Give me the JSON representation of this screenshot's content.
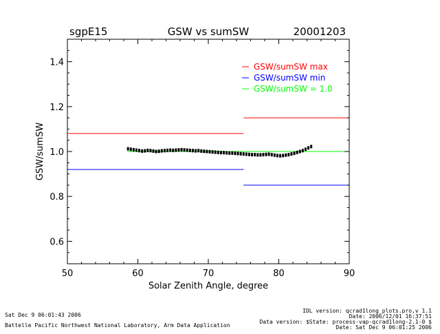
{
  "header": {
    "site": "sgpE15",
    "title": "GSW vs sumSW",
    "date": "20001203"
  },
  "chart_data": {
    "type": "scatter",
    "title": "GSW vs sumSW",
    "xlabel": "Solar Zenith Angle, degree",
    "ylabel": "GSW/sumSW",
    "xlim": [
      50,
      90
    ],
    "ylim": [
      0.5,
      1.5
    ],
    "xticks": [
      50,
      60,
      70,
      80,
      90
    ],
    "yticks": [
      0.6,
      0.8,
      1.0,
      1.2,
      1.4
    ],
    "ytick_labels": [
      "0.6",
      "0.8",
      "1.0",
      "1.2",
      "1.4"
    ],
    "grid": false,
    "legend_position": "top-right",
    "colors": {
      "max": "#ff0000",
      "min": "#0000ff",
      "one": "#00ff00",
      "points": "#000000"
    },
    "legend": [
      {
        "label": "GSW/sumSW max",
        "color": "#ff0000"
      },
      {
        "label": "GSW/sumSW min",
        "color": "#0000ff"
      },
      {
        "label": "GSW/sumSW = 1.0",
        "color": "#00ff00"
      }
    ],
    "reference_lines": [
      {
        "series": "max",
        "color": "#ff0000",
        "segments": [
          {
            "x": [
              50,
              75
            ],
            "y": 1.08
          },
          {
            "x": [
              75,
              90
            ],
            "y": 1.15
          }
        ]
      },
      {
        "series": "min",
        "color": "#0000ff",
        "segments": [
          {
            "x": [
              50,
              75
            ],
            "y": 0.92
          },
          {
            "x": [
              75,
              90
            ],
            "y": 0.85
          }
        ]
      },
      {
        "series": "one",
        "color": "#00ff00",
        "segments": [
          {
            "x": [
              58.5,
              90
            ],
            "y": 1.0
          }
        ]
      }
    ],
    "points": {
      "x": [
        58.6,
        59.0,
        59.4,
        59.8,
        60.2,
        60.6,
        61.0,
        61.4,
        61.8,
        62.2,
        62.6,
        63.0,
        63.4,
        63.8,
        64.2,
        64.6,
        65.0,
        65.4,
        65.8,
        66.2,
        66.6,
        67.0,
        67.4,
        67.8,
        68.2,
        68.6,
        69.0,
        69.4,
        69.8,
        70.2,
        70.6,
        71.0,
        71.4,
        71.8,
        72.2,
        72.6,
        73.0,
        73.4,
        73.8,
        74.2,
        74.6,
        75.0,
        75.4,
        75.8,
        76.2,
        76.6,
        77.0,
        77.4,
        77.8,
        78.2,
        78.6,
        79.0,
        79.4,
        79.8,
        80.2,
        80.6,
        81.0,
        81.4,
        81.8,
        82.2,
        82.6,
        83.0,
        83.4,
        83.8,
        84.2,
        84.6
      ],
      "y": [
        1.012,
        1.01,
        1.008,
        1.006,
        1.004,
        1.002,
        1.003,
        1.005,
        1.004,
        1.002,
        1.0,
        1.001,
        1.003,
        1.004,
        1.005,
        1.006,
        1.005,
        1.006,
        1.007,
        1.008,
        1.007,
        1.006,
        1.005,
        1.004,
        1.003,
        1.004,
        1.002,
        1.001,
        1.0,
        0.999,
        0.998,
        0.997,
        0.996,
        0.995,
        0.995,
        0.994,
        0.993,
        0.993,
        0.992,
        0.991,
        0.99,
        0.989,
        0.988,
        0.987,
        0.986,
        0.986,
        0.985,
        0.985,
        0.986,
        0.987,
        0.988,
        0.986,
        0.984,
        0.982,
        0.981,
        0.982,
        0.984,
        0.986,
        0.989,
        0.992,
        0.996,
        1.0,
        1.004,
        1.01,
        1.016,
        1.022
      ]
    }
  },
  "footer": {
    "left_date": "Sat Dec  9 06:01:43 2006",
    "left_org": "Battelle Pacific Northwest National Laboratory, Arm Data Application",
    "right_lines": [
      "IDL version: qcrad1long_plots.pro,v 1.1",
      "Date: 2006/12/01 16:37:51",
      "Data version: $State: process-vap-qcrad1long-2.1-0 $",
      "Date: Sat Dec  9 06:01:25 2006"
    ]
  }
}
